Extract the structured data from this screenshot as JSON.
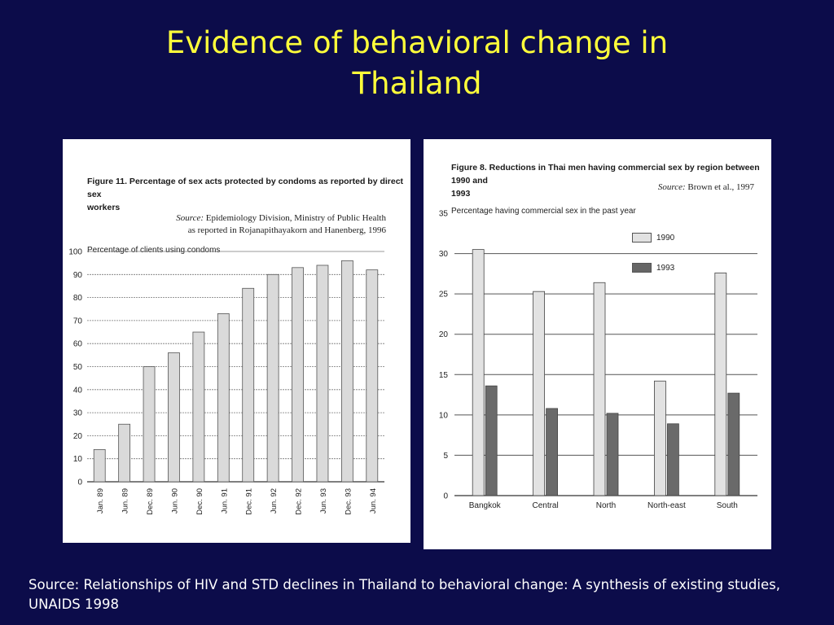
{
  "slide": {
    "title_line1": "Evidence of behavioral change in",
    "title_line2": "Thailand",
    "source": "Source: Relationships of HIV and STD declines in Thailand to behavioral change: A synthesis of existing studies, UNAIDS 1998"
  },
  "colors": {
    "background": "#0c0c4a",
    "title": "#ffff3a",
    "bar_light": "#d9d9d9",
    "bar_dark": "#6a6a6a"
  },
  "left_figure": {
    "caption_bold": "Figure 11. Percentage of sex acts protected by condoms as reported by direct sex",
    "caption_bold2": "workers",
    "source_label": "Source:",
    "source_line1": "Epidemiology Division, Ministry of Public Health",
    "source_line2": "as reported in Rojanapithayakorn and Hanenberg, 1996"
  },
  "right_figure": {
    "caption_bold": "Figure 8. Reductions in Thai men having commercial sex by region between 1990 and",
    "caption_bold2": "1993",
    "source_label": "Source:",
    "source_text": "Brown et al., 1997"
  },
  "chart_data": [
    {
      "type": "bar",
      "title": "Figure 11. Percentage of sex acts protected by condoms as reported by direct sex workers",
      "ylabel": "Percentage of clients using condoms",
      "xlabel": "",
      "ylim": [
        0,
        100
      ],
      "yticks": [
        0,
        10,
        20,
        30,
        40,
        50,
        60,
        70,
        80,
        90,
        100
      ],
      "grid": true,
      "categories": [
        "Jan. 89",
        "Jun. 89",
        "Dec. 89",
        "Jun. 90",
        "Dec. 90",
        "Jun. 91",
        "Dec. 91",
        "Jun. 92",
        "Dec. 92",
        "Jun. 93",
        "Dec. 93",
        "Jun. 94"
      ],
      "values": [
        14,
        25,
        50,
        56,
        65,
        73,
        84,
        90,
        93,
        94,
        96,
        92
      ]
    },
    {
      "type": "bar",
      "title": "Figure 8. Reductions in Thai men having commercial sex by region between 1990 and 1993",
      "ylabel": "Percentage having commercial sex in the past year",
      "xlabel": "",
      "ylim": [
        0,
        35
      ],
      "yticks": [
        0,
        5,
        10,
        15,
        20,
        25,
        30,
        35
      ],
      "grid": true,
      "legend_position": "top-right",
      "categories": [
        "Bangkok",
        "Central",
        "North",
        "North-east",
        "South"
      ],
      "series": [
        {
          "name": "1990",
          "values": [
            30.5,
            25.3,
            26.4,
            14.2,
            27.6
          ]
        },
        {
          "name": "1993",
          "values": [
            13.6,
            10.8,
            10.2,
            8.9,
            12.7
          ]
        }
      ]
    }
  ]
}
